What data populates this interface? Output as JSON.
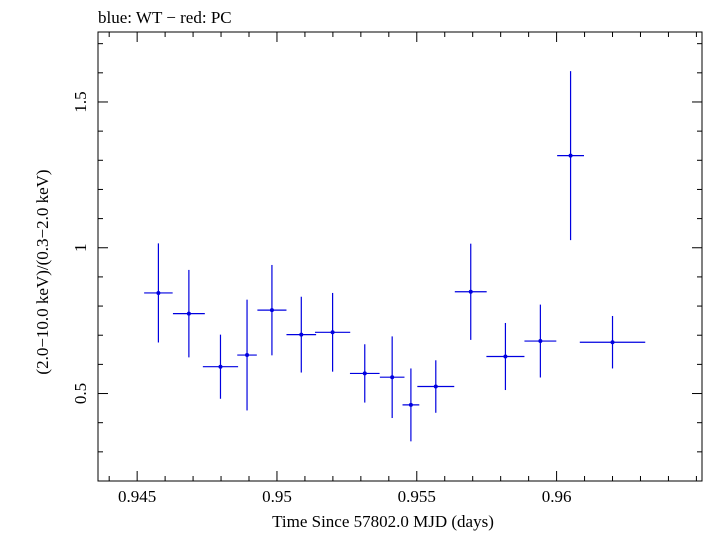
{
  "chart_data": {
    "type": "scatter",
    "title": "blue: WT − red: PC",
    "xlabel": "Time Since 57802.0 MJD (days)",
    "ylabel": "(2.0−10.0 keV)/(0.3−2.0 keV)",
    "xlim": [
      0.9436,
      0.9652
    ],
    "ylim": [
      0.2,
      1.74
    ],
    "x_ticks": [
      {
        "value": 0.945,
        "label": "0.945"
      },
      {
        "value": 0.95,
        "label": "0.95"
      },
      {
        "value": 0.955,
        "label": "0.955"
      },
      {
        "value": 0.96,
        "label": "0.96"
      }
    ],
    "y_ticks": [
      {
        "value": 0.5,
        "label": "0.5"
      },
      {
        "value": 1.0,
        "label": "1"
      },
      {
        "value": 1.5,
        "label": "1.5"
      }
    ],
    "grid": false,
    "series": [
      {
        "color": "#0000e0",
        "points": [
          {
            "x": 0.94576,
            "xerr": 0.00051,
            "y": 0.845,
            "yerr": [
              0.17,
              0.17
            ]
          },
          {
            "x": 0.94685,
            "xerr": 0.00057,
            "y": 0.774,
            "yerr": [
              0.15,
              0.15
            ]
          },
          {
            "x": 0.94798,
            "xerr": 0.00063,
            "y": 0.592,
            "yerr": [
              0.11,
              0.11
            ]
          },
          {
            "x": 0.94893,
            "xerr": 0.00035,
            "y": 0.632,
            "yerr": [
              0.19,
              0.19
            ]
          },
          {
            "x": 0.94982,
            "xerr": 0.00052,
            "y": 0.786,
            "yerr": [
              0.155,
              0.155
            ]
          },
          {
            "x": 0.95087,
            "xerr": 0.00053,
            "y": 0.702,
            "yerr": [
              0.13,
              0.13
            ]
          },
          {
            "x": 0.95199,
            "xerr": 0.00063,
            "y": 0.71,
            "yerr": [
              0.135,
              0.135
            ]
          },
          {
            "x": 0.95314,
            "xerr": 0.00053,
            "y": 0.569,
            "yerr": [
              0.1,
              0.1
            ]
          },
          {
            "x": 0.95412,
            "xerr": 0.00044,
            "y": 0.556,
            "yerr": [
              0.14,
              0.14
            ]
          },
          {
            "x": 0.95479,
            "xerr": 0.0003,
            "y": 0.461,
            "yerr": [
              0.125,
              0.125
            ]
          },
          {
            "x": 0.95568,
            "xerr": 0.00066,
            "y": 0.524,
            "yerr": [
              0.09,
              0.09
            ]
          },
          {
            "x": 0.95693,
            "xerr": 0.00057,
            "y": 0.849,
            "yerr": [
              0.165,
              0.165
            ]
          },
          {
            "x": 0.95817,
            "xerr": 0.00068,
            "y": 0.627,
            "yerr": [
              0.115,
              0.115
            ]
          },
          {
            "x": 0.95942,
            "xerr": 0.00057,
            "y": 0.68,
            "yerr": [
              0.125,
              0.125
            ]
          },
          {
            "x": 0.9605,
            "xerr": 0.00048,
            "y": 1.316,
            "yerr": [
              0.29,
              0.29
            ]
          },
          {
            "x": 0.962,
            "xerr": 0.00117,
            "y": 0.676,
            "yerr": [
              0.09,
              0.09
            ]
          }
        ]
      }
    ]
  }
}
